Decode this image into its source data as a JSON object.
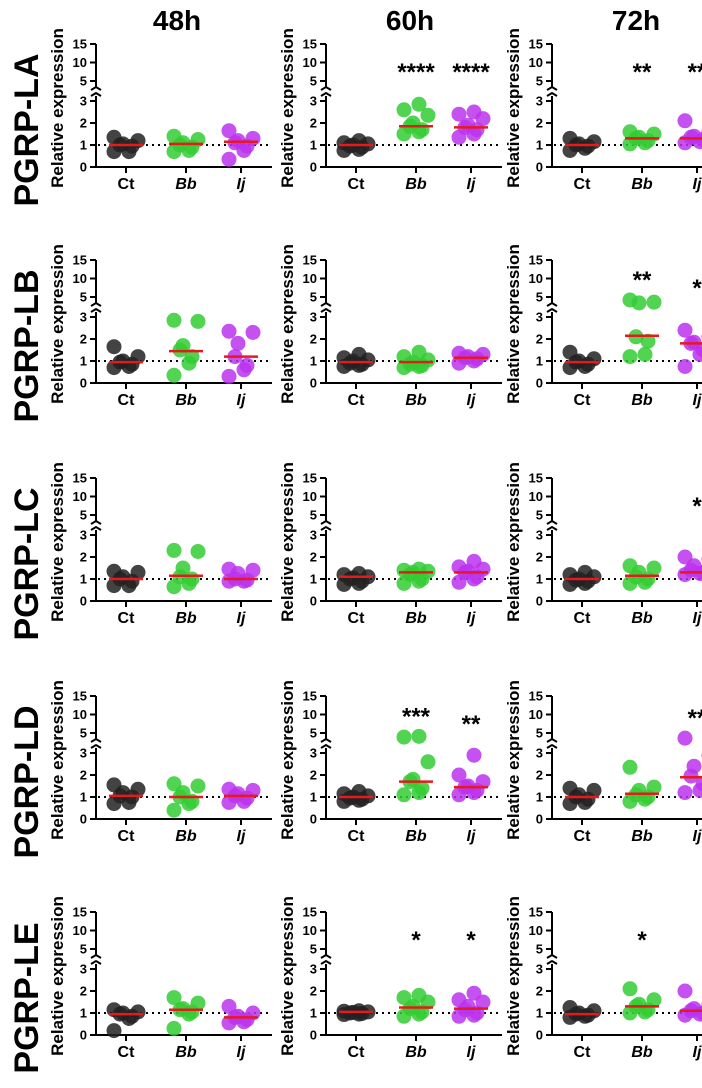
{
  "chart_data": {
    "type": "scatter",
    "timepoints": [
      "48h",
      "60h",
      "72h"
    ],
    "genes": [
      "PGRP-LA",
      "PGRP-LB",
      "PGRP-LC",
      "PGRP-LD",
      "PGRP-LE"
    ],
    "ylabel": "Relative expression",
    "categories": [
      "Ct",
      "Bb",
      "Ij"
    ],
    "italic_categories": [
      "Bb",
      "Ij"
    ],
    "ylim_lower": [
      0,
      3
    ],
    "ylim_upper": [
      5,
      15
    ],
    "ticks_lower": [
      "0",
      "1",
      "2",
      "3"
    ],
    "ticks_upper": [
      "5",
      "10",
      "15"
    ],
    "reference_line": 1,
    "colors": {
      "Ct": "#222222",
      "Bb": "#33cc33",
      "Ij": "#bb33ee",
      "median": "#e41a1c"
    },
    "panels": [
      {
        "gene": "PGRP-LA",
        "time": "48h",
        "groups": [
          {
            "cat": "Ct",
            "median": 1.0,
            "sig": "",
            "values": [
              1.35,
              1.2,
              1.05,
              1.0,
              0.95,
              0.7,
              0.7
            ]
          },
          {
            "cat": "Bb",
            "median": 1.05,
            "sig": "",
            "values": [
              1.4,
              1.25,
              1.1,
              1.0,
              0.9,
              0.75,
              0.7
            ]
          },
          {
            "cat": "Ij",
            "median": 1.15,
            "sig": "",
            "values": [
              1.65,
              1.3,
              1.2,
              1.1,
              0.95,
              0.75,
              0.35
            ]
          }
        ]
      },
      {
        "gene": "PGRP-LA",
        "time": "60h",
        "groups": [
          {
            "cat": "Ct",
            "median": 1.0,
            "sig": "",
            "values": [
              1.2,
              1.1,
              1.05,
              1.0,
              0.95,
              0.9,
              0.8,
              0.75
            ]
          },
          {
            "cat": "Bb",
            "median": 1.85,
            "sig": "****",
            "values": [
              2.85,
              2.6,
              2.35,
              2.0,
              1.85,
              1.7,
              1.6,
              1.5
            ]
          },
          {
            "cat": "Ij",
            "median": 1.8,
            "sig": "****",
            "values": [
              2.5,
              2.4,
              2.2,
              1.9,
              1.8,
              1.7,
              1.5,
              1.35
            ]
          }
        ]
      },
      {
        "gene": "PGRP-LA",
        "time": "72h",
        "groups": [
          {
            "cat": "Ct",
            "median": 1.0,
            "sig": "",
            "values": [
              1.3,
              1.15,
              1.05,
              1.0,
              0.95,
              0.85,
              0.75
            ]
          },
          {
            "cat": "Bb",
            "median": 1.3,
            "sig": "**",
            "values": [
              1.6,
              1.5,
              1.35,
              1.3,
              1.2,
              1.1,
              1.05
            ]
          },
          {
            "cat": "Ij",
            "median": 1.3,
            "sig": "**",
            "values": [
              2.1,
              1.6,
              1.4,
              1.35,
              1.25,
              1.15,
              1.1
            ]
          }
        ]
      },
      {
        "gene": "PGRP-LB",
        "time": "48h",
        "groups": [
          {
            "cat": "Ct",
            "median": 0.95,
            "sig": "",
            "values": [
              1.65,
              1.2,
              1.0,
              0.95,
              0.85,
              0.75,
              0.7
            ]
          },
          {
            "cat": "Bb",
            "median": 1.45,
            "sig": "",
            "values": [
              2.85,
              2.8,
              1.7,
              1.5,
              1.2,
              0.9,
              0.35
            ]
          },
          {
            "cat": "Ij",
            "median": 1.2,
            "sig": "",
            "values": [
              2.35,
              2.3,
              1.8,
              1.2,
              0.8,
              0.6,
              0.3
            ]
          }
        ]
      },
      {
        "gene": "PGRP-LB",
        "time": "60h",
        "groups": [
          {
            "cat": "Ct",
            "median": 0.95,
            "sig": "",
            "values": [
              1.3,
              1.15,
              1.05,
              1.0,
              0.9,
              0.85,
              0.8,
              0.75
            ]
          },
          {
            "cat": "Bb",
            "median": 0.95,
            "sig": "",
            "values": [
              1.4,
              1.2,
              1.05,
              0.95,
              0.85,
              0.8,
              0.75,
              0.7
            ]
          },
          {
            "cat": "Ij",
            "median": 1.15,
            "sig": "",
            "values": [
              1.35,
              1.3,
              1.2,
              1.15,
              1.1,
              1.0,
              0.9
            ]
          }
        ]
      },
      {
        "gene": "PGRP-LB",
        "time": "72h",
        "groups": [
          {
            "cat": "Ct",
            "median": 0.95,
            "sig": "",
            "values": [
              1.4,
              1.1,
              1.0,
              0.95,
              0.85,
              0.75,
              0.7
            ]
          },
          {
            "cat": "Bb",
            "median": 2.15,
            "sig": "**",
            "values": [
              3.6,
              3.4,
              4.2,
              2.1,
              1.9,
              1.3,
              1.2
            ]
          },
          {
            "cat": "Ij",
            "median": 1.8,
            "sig": "*",
            "values": [
              2.4,
              2.1,
              1.85,
              1.8,
              1.5,
              1.3,
              0.75
            ]
          }
        ]
      },
      {
        "gene": "PGRP-LC",
        "time": "48h",
        "groups": [
          {
            "cat": "Ct",
            "median": 1.0,
            "sig": "",
            "values": [
              1.35,
              1.3,
              1.1,
              1.0,
              0.9,
              0.7,
              0.7
            ]
          },
          {
            "cat": "Bb",
            "median": 1.15,
            "sig": "",
            "values": [
              2.3,
              2.25,
              1.5,
              1.1,
              1.0,
              0.8,
              0.65
            ]
          },
          {
            "cat": "Ij",
            "median": 1.0,
            "sig": "",
            "values": [
              1.45,
              1.4,
              1.25,
              1.0,
              0.95,
              0.9,
              0.9
            ]
          }
        ]
      },
      {
        "gene": "PGRP-LC",
        "time": "60h",
        "groups": [
          {
            "cat": "Ct",
            "median": 1.1,
            "sig": "",
            "values": [
              1.25,
              1.2,
              1.1,
              1.05,
              1.0,
              0.9,
              0.8,
              0.75
            ]
          },
          {
            "cat": "Bb",
            "median": 1.3,
            "sig": "",
            "values": [
              1.45,
              1.4,
              1.35,
              1.3,
              1.2,
              1.0,
              0.9,
              0.8
            ]
          },
          {
            "cat": "Ij",
            "median": 1.3,
            "sig": "",
            "values": [
              1.8,
              1.55,
              1.45,
              1.35,
              1.3,
              1.1,
              1.0,
              0.85
            ]
          }
        ]
      },
      {
        "gene": "PGRP-LC",
        "time": "72h",
        "groups": [
          {
            "cat": "Ct",
            "median": 1.0,
            "sig": "",
            "values": [
              1.3,
              1.2,
              1.1,
              1.0,
              0.95,
              0.9,
              0.8,
              0.75
            ]
          },
          {
            "cat": "Bb",
            "median": 1.15,
            "sig": "",
            "values": [
              1.6,
              1.5,
              1.3,
              1.1,
              1.0,
              0.85,
              0.8
            ]
          },
          {
            "cat": "Ij",
            "median": 1.3,
            "sig": "*",
            "values": [
              2.0,
              1.9,
              1.6,
              1.4,
              1.3,
              1.25,
              1.2
            ]
          }
        ]
      },
      {
        "gene": "PGRP-LD",
        "time": "48h",
        "groups": [
          {
            "cat": "Ct",
            "median": 1.05,
            "sig": "",
            "values": [
              1.55,
              1.35,
              1.2,
              1.05,
              1.0,
              0.75,
              0.7
            ]
          },
          {
            "cat": "Bb",
            "median": 1.0,
            "sig": "",
            "values": [
              1.6,
              1.5,
              1.2,
              1.0,
              0.8,
              0.7,
              0.4
            ]
          },
          {
            "cat": "Ij",
            "median": 1.05,
            "sig": "",
            "values": [
              1.35,
              1.3,
              1.15,
              1.05,
              0.95,
              0.8,
              0.75
            ]
          }
        ]
      },
      {
        "gene": "PGRP-LD",
        "time": "60h",
        "groups": [
          {
            "cat": "Ct",
            "median": 1.0,
            "sig": "",
            "values": [
              1.25,
              1.15,
              1.05,
              1.0,
              0.95,
              0.9,
              0.85,
              0.8
            ]
          },
          {
            "cat": "Bb",
            "median": 1.7,
            "sig": "***",
            "values": [
              3.9,
              4.1,
              2.6,
              1.8,
              1.7,
              1.4,
              1.2,
              1.1
            ]
          },
          {
            "cat": "Ij",
            "median": 1.45,
            "sig": "**",
            "values": [
              2.9,
              2.0,
              1.7,
              1.5,
              1.45,
              1.3,
              1.2,
              1.1
            ]
          }
        ]
      },
      {
        "gene": "PGRP-LD",
        "time": "72h",
        "groups": [
          {
            "cat": "Ct",
            "median": 1.0,
            "sig": "",
            "values": [
              1.4,
              1.3,
              1.1,
              1.0,
              0.9,
              0.75,
              0.7
            ]
          },
          {
            "cat": "Bb",
            "median": 1.15,
            "sig": "",
            "values": [
              2.35,
              1.45,
              1.3,
              1.1,
              1.0,
              0.9,
              0.8
            ]
          },
          {
            "cat": "Ij",
            "median": 1.9,
            "sig": "**",
            "values": [
              3.6,
              2.9,
              2.4,
              1.95,
              1.6,
              1.3,
              1.2
            ]
          }
        ]
      },
      {
        "gene": "PGRP-LE",
        "time": "48h",
        "groups": [
          {
            "cat": "Ct",
            "median": 0.95,
            "sig": "",
            "values": [
              1.15,
              1.05,
              1.0,
              0.95,
              0.85,
              0.75,
              0.2
            ]
          },
          {
            "cat": "Bb",
            "median": 1.15,
            "sig": "",
            "values": [
              1.7,
              1.45,
              1.2,
              1.15,
              1.05,
              0.95,
              0.3
            ]
          },
          {
            "cat": "Ij",
            "median": 0.8,
            "sig": "",
            "values": [
              1.3,
              1.0,
              0.85,
              0.8,
              0.7,
              0.6,
              0.55
            ]
          }
        ]
      },
      {
        "gene": "PGRP-LE",
        "time": "60h",
        "groups": [
          {
            "cat": "Ct",
            "median": 1.05,
            "sig": "",
            "values": [
              1.1,
              1.08,
              1.05,
              1.03,
              1.0,
              0.98,
              0.95,
              0.93
            ]
          },
          {
            "cat": "Bb",
            "median": 1.25,
            "sig": "*",
            "values": [
              1.8,
              1.7,
              1.5,
              1.3,
              1.2,
              1.05,
              0.95,
              0.85
            ]
          },
          {
            "cat": "Ij",
            "median": 1.2,
            "sig": "*",
            "values": [
              1.9,
              1.6,
              1.5,
              1.3,
              1.15,
              1.0,
              0.9,
              0.85
            ]
          }
        ]
      },
      {
        "gene": "PGRP-LE",
        "time": "72h",
        "groups": [
          {
            "cat": "Ct",
            "median": 0.95,
            "sig": "",
            "values": [
              1.25,
              1.1,
              1.0,
              0.95,
              0.9,
              0.85,
              0.8
            ]
          },
          {
            "cat": "Bb",
            "median": 1.3,
            "sig": "*",
            "values": [
              2.1,
              1.6,
              1.4,
              1.3,
              1.15,
              1.05,
              1.0
            ]
          },
          {
            "cat": "Ij",
            "median": 1.1,
            "sig": "",
            "values": [
              2.0,
              1.4,
              1.2,
              1.1,
              1.0,
              0.95,
              0.9
            ]
          }
        ]
      }
    ]
  }
}
